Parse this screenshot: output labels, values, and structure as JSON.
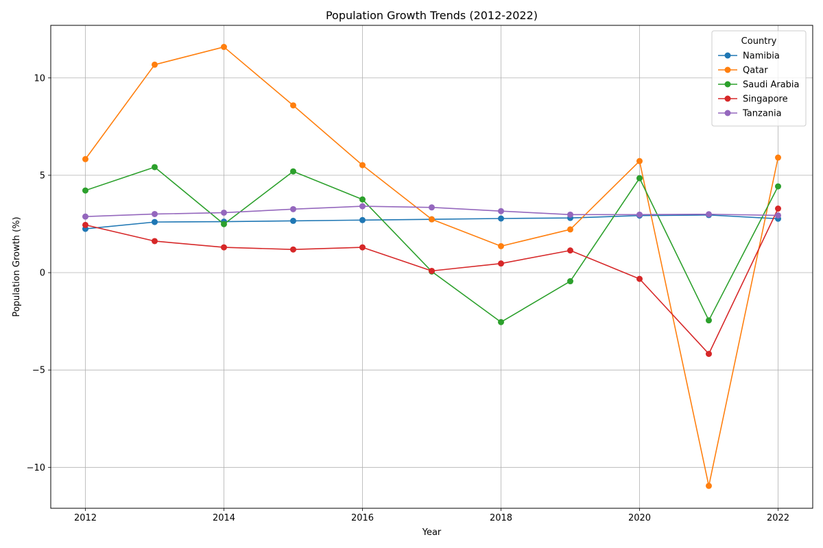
{
  "chart_data": {
    "type": "line",
    "title": "Population Growth Trends (2012-2022)",
    "xlabel": "Year",
    "ylabel": "Population Growth (%)",
    "xlim": [
      2011.5,
      2022.5
    ],
    "ylim": [
      -12.1,
      12.7
    ],
    "x_ticks": [
      2012,
      2014,
      2016,
      2018,
      2020,
      2022
    ],
    "y_ticks": [
      -10,
      -5,
      0,
      5,
      10
    ],
    "grid": true,
    "legend": {
      "title": "Country",
      "placement": "top-right"
    },
    "x": [
      2012,
      2013,
      2014,
      2015,
      2016,
      2017,
      2018,
      2019,
      2020,
      2021,
      2022
    ],
    "series": [
      {
        "name": "Namibia",
        "color": "#1f77b4",
        "values": [
          2.25,
          2.6,
          2.62,
          2.66,
          2.7,
          2.74,
          2.78,
          2.81,
          2.93,
          2.96,
          2.77
        ]
      },
      {
        "name": "Qatar",
        "color": "#ff7f0e",
        "values": [
          5.83,
          10.68,
          11.59,
          8.59,
          5.52,
          2.74,
          1.36,
          2.22,
          5.73,
          -10.95,
          5.91
        ]
      },
      {
        "name": "Saudi Arabia",
        "color": "#2ca02c",
        "values": [
          4.22,
          5.42,
          2.49,
          5.2,
          3.76,
          0.06,
          -2.54,
          -0.44,
          4.85,
          -2.45,
          4.43
        ]
      },
      {
        "name": "Singapore",
        "color": "#d62728",
        "values": [
          2.45,
          1.62,
          1.3,
          1.19,
          1.3,
          0.09,
          0.47,
          1.14,
          -0.32,
          -4.17,
          3.29
        ]
      },
      {
        "name": "Tanzania",
        "color": "#9467bd",
        "values": [
          2.88,
          3.01,
          3.08,
          3.26,
          3.41,
          3.35,
          3.16,
          2.98,
          2.98,
          3.0,
          2.94
        ]
      }
    ]
  }
}
